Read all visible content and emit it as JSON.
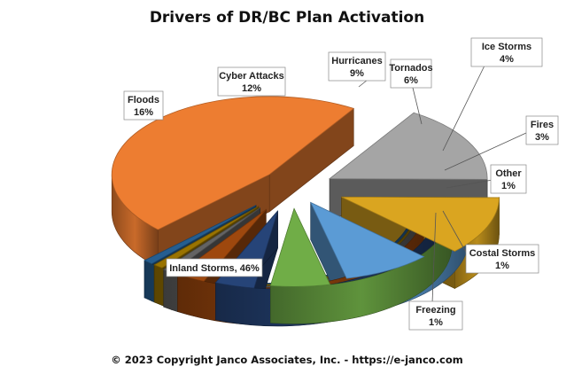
{
  "chart_data": {
    "type": "pie",
    "style": "3d-exploded",
    "title": "Drivers of DR/BC Plan Activation",
    "categories": [
      "Inland Storms",
      "Floods",
      "Cyber Attacks",
      "Hurricanes",
      "Tornados",
      "Ice Storms",
      "Fires",
      "Other",
      "Costal Storms",
      "Freezing"
    ],
    "values": [
      46,
      16,
      12,
      9,
      6,
      4,
      3,
      1,
      1,
      1
    ],
    "labels": [
      "Inland Storms, 46%",
      "Floods 16%",
      "Cyber Attacks 12%",
      "Hurricanes 9%",
      "Tornados 6%",
      "Ice Storms 4%",
      "Fires 3%",
      "Other 1%",
      "Costal Storms 1%",
      "Freezing 1%"
    ],
    "colors": [
      "#ED7D31",
      "#A5A5A5",
      "#DAA520",
      "#5B9BD5",
      "#70AD47",
      "#264478",
      "#9E480E",
      "#636363",
      "#997300",
      "#255E91"
    ],
    "footer": "© 2023 Copyright Janco Associates, Inc. - https://e-janco.com"
  }
}
